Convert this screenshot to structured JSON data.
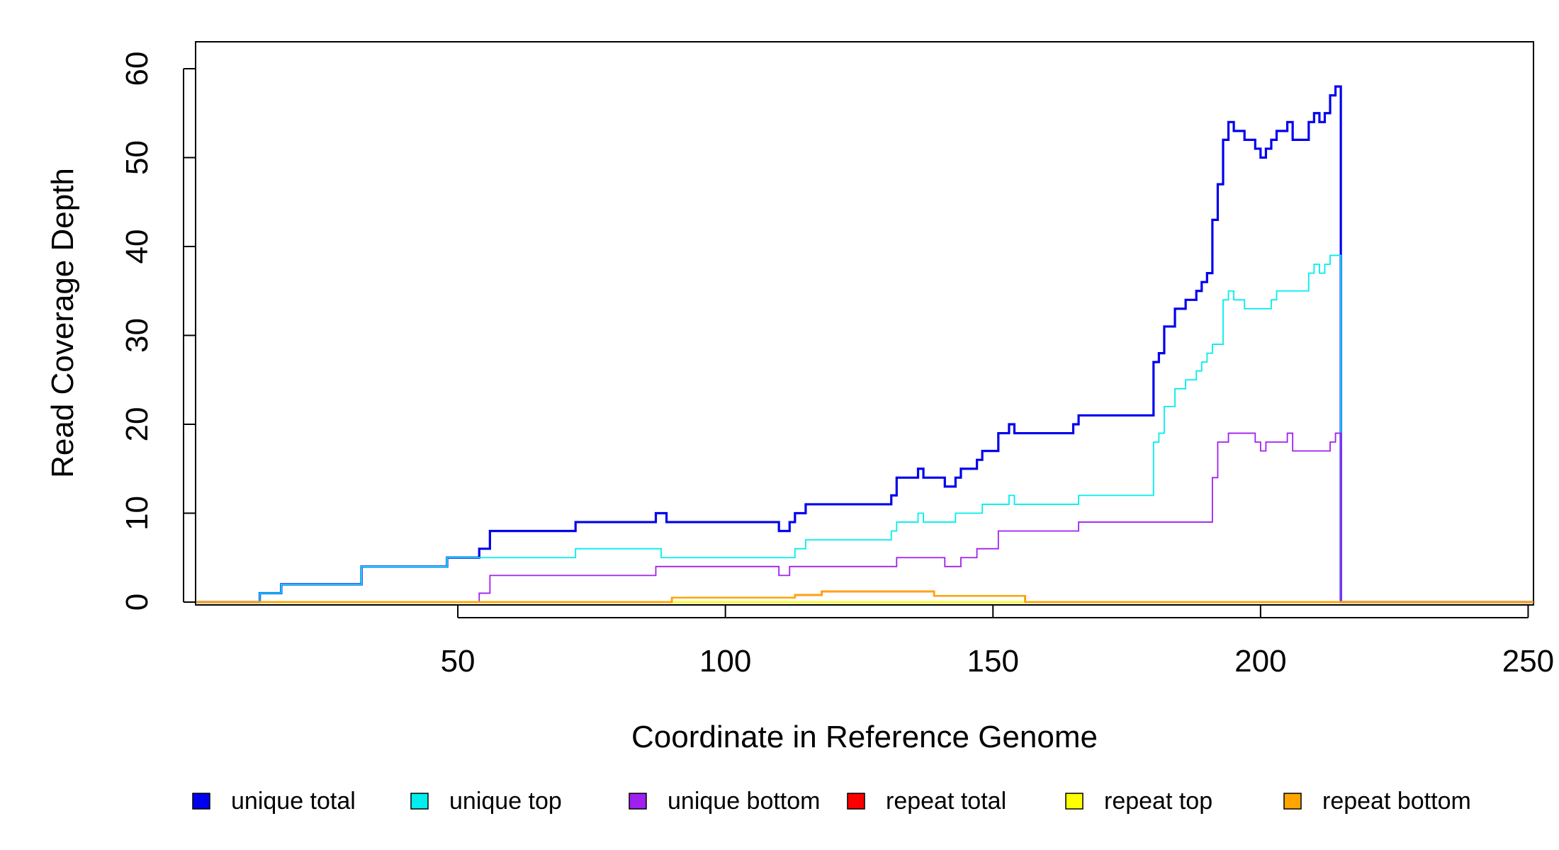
{
  "chart_data": {
    "type": "line",
    "step": true,
    "title": "",
    "xlabel": "Coordinate in Reference Genome",
    "ylabel": "Read Coverage Depth",
    "xlim": [
      1,
      251
    ],
    "ylim": [
      0,
      60
    ],
    "x_ticks": [
      50,
      100,
      150,
      200,
      250
    ],
    "y_ticks": [
      0,
      10,
      20,
      30,
      40,
      50,
      60
    ],
    "grid": false,
    "legend_position": "bottom",
    "series": [
      {
        "name": "unique total",
        "color": "#0000EE",
        "points": [
          [
            1,
            0
          ],
          [
            13,
            1
          ],
          [
            17,
            2
          ],
          [
            32,
            4
          ],
          [
            48,
            5
          ],
          [
            54,
            6
          ],
          [
            56,
            8
          ],
          [
            72,
            9
          ],
          [
            87,
            10
          ],
          [
            89,
            9
          ],
          [
            110,
            8
          ],
          [
            112,
            9
          ],
          [
            113,
            10
          ],
          [
            115,
            11
          ],
          [
            131,
            12
          ],
          [
            132,
            14
          ],
          [
            136,
            15
          ],
          [
            137,
            14
          ],
          [
            141,
            13
          ],
          [
            143,
            14
          ],
          [
            144,
            15
          ],
          [
            147,
            16
          ],
          [
            148,
            17
          ],
          [
            151,
            19
          ],
          [
            153,
            20
          ],
          [
            154,
            19
          ],
          [
            165,
            20
          ],
          [
            166,
            21
          ],
          [
            180,
            27
          ],
          [
            181,
            28
          ],
          [
            182,
            31
          ],
          [
            184,
            33
          ],
          [
            186,
            34
          ],
          [
            188,
            35
          ],
          [
            189,
            36
          ],
          [
            190,
            37
          ],
          [
            191,
            43
          ],
          [
            192,
            47
          ],
          [
            193,
            52
          ],
          [
            194,
            54
          ],
          [
            195,
            53
          ],
          [
            197,
            52
          ],
          [
            199,
            51
          ],
          [
            200,
            50
          ],
          [
            201,
            51
          ],
          [
            202,
            52
          ],
          [
            203,
            53
          ],
          [
            205,
            54
          ],
          [
            206,
            52
          ],
          [
            209,
            54
          ],
          [
            210,
            55
          ],
          [
            211,
            54
          ],
          [
            212,
            55
          ],
          [
            213,
            57
          ],
          [
            214,
            58
          ],
          [
            215,
            0
          ],
          [
            251,
            0
          ]
        ]
      },
      {
        "name": "unique top",
        "color": "#00EEEE",
        "points": [
          [
            1,
            0
          ],
          [
            13,
            1
          ],
          [
            17,
            2
          ],
          [
            32,
            4
          ],
          [
            48,
            5
          ],
          [
            72,
            6
          ],
          [
            88,
            5
          ],
          [
            113,
            6
          ],
          [
            115,
            7
          ],
          [
            131,
            8
          ],
          [
            132,
            9
          ],
          [
            136,
            10
          ],
          [
            137,
            9
          ],
          [
            143,
            10
          ],
          [
            148,
            11
          ],
          [
            153,
            12
          ],
          [
            154,
            11
          ],
          [
            166,
            12
          ],
          [
            180,
            18
          ],
          [
            181,
            19
          ],
          [
            182,
            22
          ],
          [
            184,
            24
          ],
          [
            186,
            25
          ],
          [
            188,
            26
          ],
          [
            189,
            27
          ],
          [
            190,
            28
          ],
          [
            191,
            29
          ],
          [
            193,
            34
          ],
          [
            194,
            35
          ],
          [
            195,
            34
          ],
          [
            197,
            33
          ],
          [
            202,
            34
          ],
          [
            203,
            35
          ],
          [
            209,
            37
          ],
          [
            210,
            38
          ],
          [
            211,
            37
          ],
          [
            212,
            38
          ],
          [
            213,
            39
          ],
          [
            215,
            0
          ],
          [
            251,
            0
          ]
        ]
      },
      {
        "name": "unique bottom",
        "color": "#A020F0",
        "points": [
          [
            1,
            0
          ],
          [
            54,
            1
          ],
          [
            56,
            3
          ],
          [
            87,
            4
          ],
          [
            110,
            3
          ],
          [
            112,
            4
          ],
          [
            131,
            4
          ],
          [
            132,
            5
          ],
          [
            141,
            4
          ],
          [
            144,
            5
          ],
          [
            147,
            6
          ],
          [
            151,
            8
          ],
          [
            166,
            9
          ],
          [
            191,
            14
          ],
          [
            192,
            18
          ],
          [
            194,
            19
          ],
          [
            199,
            18
          ],
          [
            200,
            17
          ],
          [
            201,
            18
          ],
          [
            205,
            19
          ],
          [
            206,
            17
          ],
          [
            213,
            18
          ],
          [
            214,
            19
          ],
          [
            215,
            0
          ],
          [
            251,
            0
          ]
        ]
      },
      {
        "name": "repeat total",
        "color": "#FF0000",
        "points": [
          [
            1,
            0
          ],
          [
            90,
            0.5
          ],
          [
            113,
            0.8
          ],
          [
            118,
            1.2
          ],
          [
            139,
            0.7
          ],
          [
            156,
            0
          ],
          [
            251,
            0
          ]
        ]
      },
      {
        "name": "repeat top",
        "color": "#FFFF00",
        "points": [
          [
            1,
            0
          ],
          [
            251,
            0
          ]
        ]
      },
      {
        "name": "repeat bottom",
        "color": "#FFA500",
        "points": [
          [
            1,
            0
          ],
          [
            90,
            0.5
          ],
          [
            113,
            0.8
          ],
          [
            118,
            1.2
          ],
          [
            139,
            0.7
          ],
          [
            156,
            0
          ],
          [
            251,
            0
          ]
        ]
      }
    ],
    "legend": [
      {
        "label": "unique total",
        "color": "#0000EE"
      },
      {
        "label": "unique top",
        "color": "#00EEEE"
      },
      {
        "label": "unique bottom",
        "color": "#A020F0"
      },
      {
        "label": "repeat total",
        "color": "#FF0000"
      },
      {
        "label": "repeat top",
        "color": "#FFFF00"
      },
      {
        "label": "repeat bottom",
        "color": "#FFA500"
      }
    ]
  }
}
